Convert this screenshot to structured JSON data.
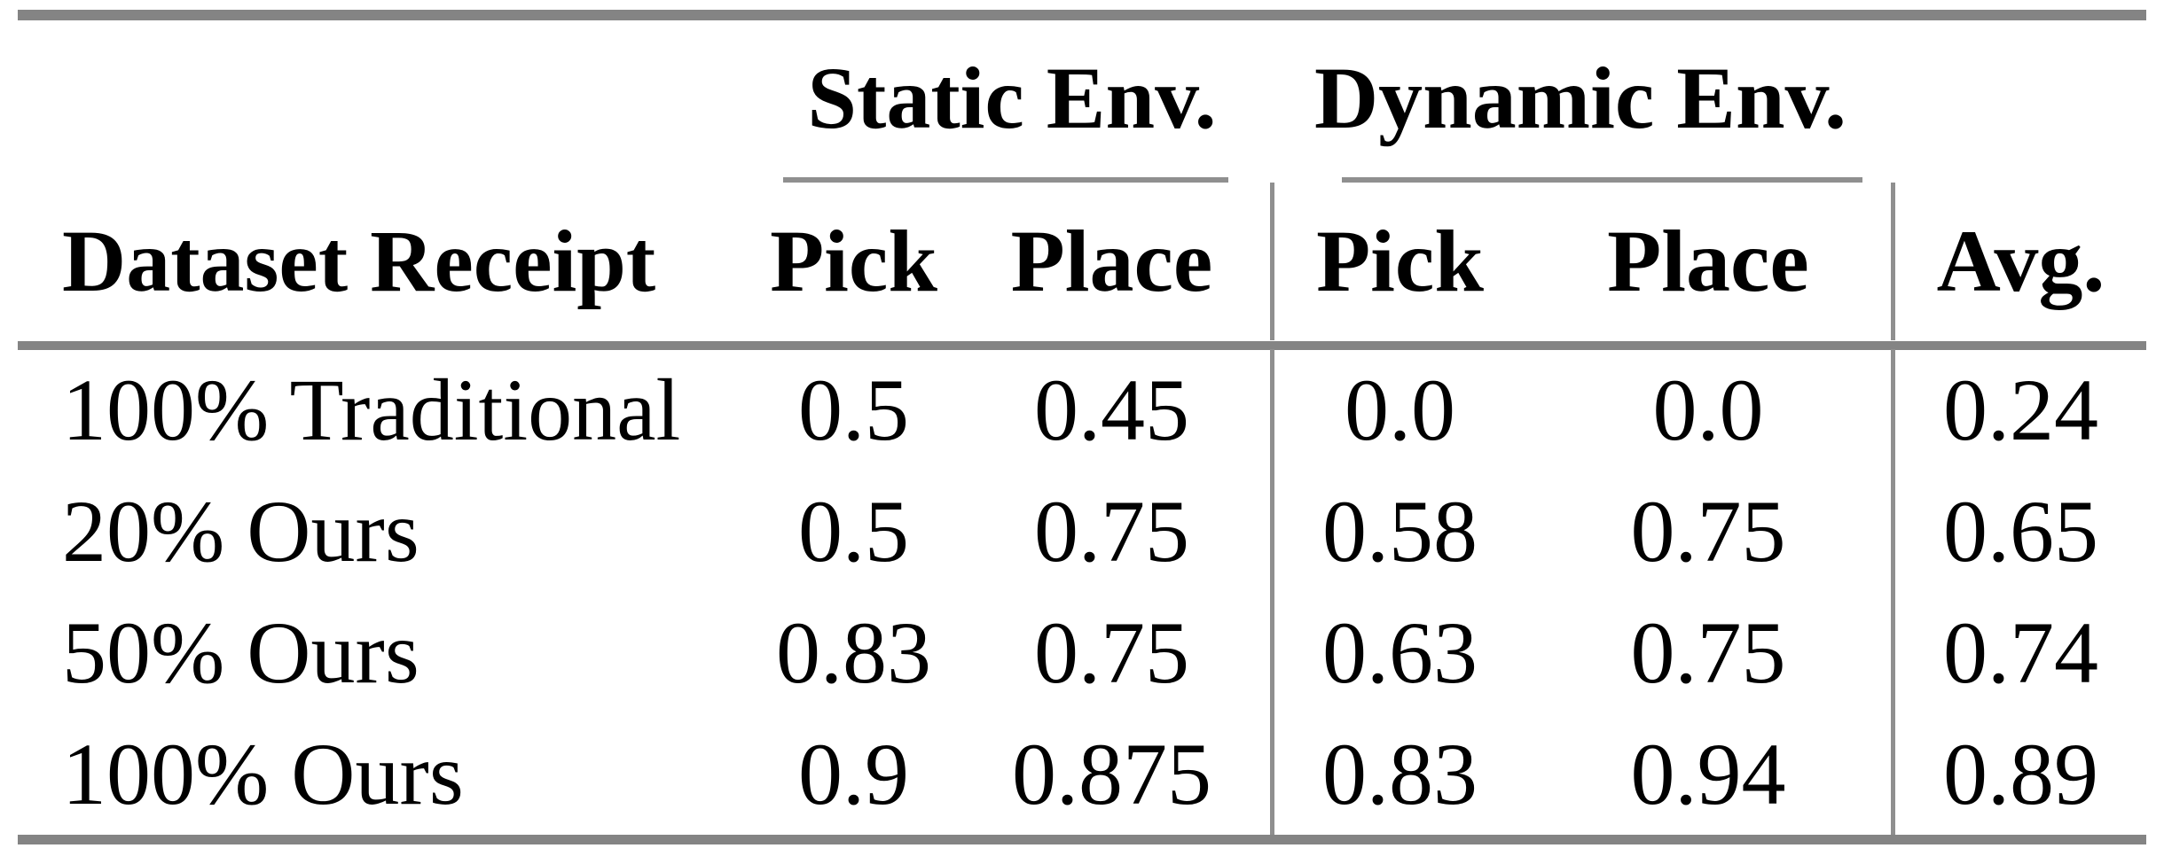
{
  "table": {
    "groups": [
      {
        "label": "Static Env."
      },
      {
        "label": "Dynamic Env."
      }
    ],
    "headers": [
      "Dataset Receipt",
      "Pick",
      "Place",
      "Pick",
      "Place",
      "Avg."
    ],
    "rows": [
      {
        "label": "100% Traditional",
        "values": [
          "0.5",
          "0.45",
          "0.0",
          "0.0",
          "0.24"
        ]
      },
      {
        "label": "20% Ours",
        "values": [
          "0.5",
          "0.75",
          "0.58",
          "0.75",
          "0.65"
        ]
      },
      {
        "label": "50% Ours",
        "values": [
          "0.83",
          "0.75",
          "0.63",
          "0.75",
          "0.74"
        ]
      },
      {
        "label": "100% Ours",
        "values": [
          "0.9",
          "0.875",
          "0.83",
          "0.94",
          "0.89"
        ]
      }
    ],
    "colors": {
      "rule_thick": "#848484",
      "rule_thin": "#8f8f8f",
      "text": "#000000",
      "background": "#ffffff"
    }
  },
  "chart_data": {
    "type": "table",
    "title": "",
    "column_groups": [
      "Static Env.",
      "Dynamic Env."
    ],
    "columns": [
      "Dataset Receipt",
      "Static Env. Pick",
      "Static Env. Place",
      "Dynamic Env. Pick",
      "Dynamic Env. Place",
      "Avg."
    ],
    "rows": [
      [
        "100% Traditional",
        0.5,
        0.45,
        0.0,
        0.0,
        0.24
      ],
      [
        "20% Ours",
        0.5,
        0.75,
        0.58,
        0.75,
        0.65
      ],
      [
        "50% Ours",
        0.83,
        0.75,
        0.63,
        0.75,
        0.74
      ],
      [
        "100% Ours",
        0.9,
        0.875,
        0.83,
        0.94,
        0.89
      ]
    ]
  }
}
